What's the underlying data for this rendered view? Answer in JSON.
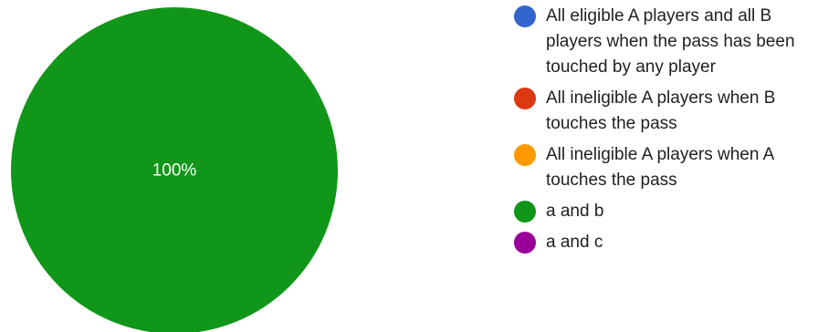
{
  "chart_data": {
    "type": "pie",
    "categories": [
      "All eligible A players and all B players when the pass has been touched by any player",
      "All ineligible A players when B touches the pass",
      "All ineligible A players when A touches the pass",
      "a and b",
      "a and c"
    ],
    "values": [
      0,
      0,
      0,
      100,
      0
    ],
    "data_labels": [
      "",
      "",
      "",
      "100%",
      ""
    ],
    "colors": [
      "#3366cc",
      "#dc3912",
      "#ff9900",
      "#109618",
      "#990099"
    ],
    "legend_position": "right",
    "title": ""
  }
}
